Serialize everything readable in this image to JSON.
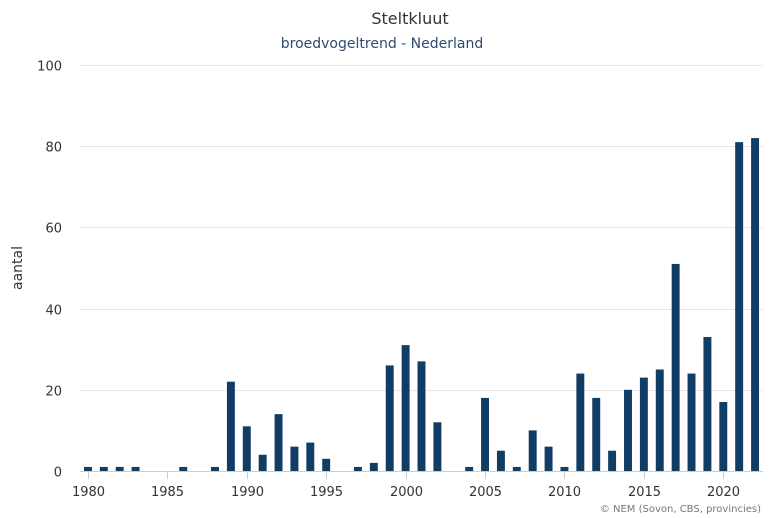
{
  "chart_data": {
    "type": "bar",
    "title": "Steltkluut",
    "subtitle": "broedvogeltrend - Nederland",
    "xlabel": "",
    "ylabel": "aantal",
    "ylim": [
      0,
      100
    ],
    "yticks": [
      0,
      20,
      40,
      60,
      80,
      100
    ],
    "xlim": [
      1979.5,
      2022.5
    ],
    "xticks": [
      1980,
      1985,
      1990,
      1995,
      2000,
      2005,
      2010,
      2015,
      2020
    ],
    "grid": true,
    "legend": "none",
    "bar_color": "#0f3d63",
    "credit": "© NEM (Sovon, CBS, provincies)",
    "x": [
      1980,
      1981,
      1982,
      1983,
      1984,
      1985,
      1986,
      1987,
      1988,
      1989,
      1990,
      1991,
      1992,
      1993,
      1994,
      1995,
      1996,
      1997,
      1998,
      1999,
      2000,
      2001,
      2002,
      2003,
      2004,
      2005,
      2006,
      2007,
      2008,
      2009,
      2010,
      2011,
      2012,
      2013,
      2014,
      2015,
      2016,
      2017,
      2018,
      2019,
      2020,
      2021,
      2022
    ],
    "values": [
      1,
      1,
      1,
      1,
      0,
      0,
      1,
      0,
      1,
      22,
      11,
      4,
      14,
      6,
      7,
      3,
      0,
      1,
      2,
      26,
      31,
      27,
      12,
      0,
      1,
      18,
      5,
      1,
      10,
      6,
      1,
      24,
      18,
      5,
      20,
      23,
      25,
      51,
      24,
      33,
      17,
      81,
      82
    ]
  }
}
